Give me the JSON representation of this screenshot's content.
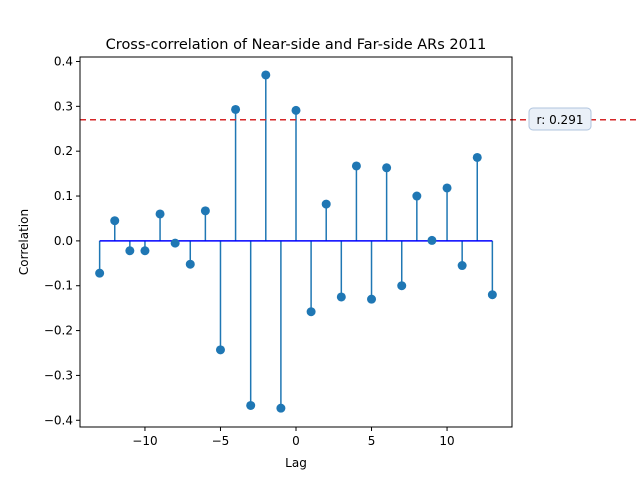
{
  "chart_data": {
    "type": "stem",
    "title": "Cross-correlation of Near-side and Far-side ARs 2011",
    "xlabel": "Lag",
    "ylabel": "Correlation",
    "xlim": [
      -14.3,
      14.3
    ],
    "ylim": [
      -0.415,
      0.41
    ],
    "x_ticks": [
      -10,
      -5,
      0,
      5,
      10
    ],
    "x_tick_labels": [
      "−10",
      "−5",
      "0",
      "5",
      "10"
    ],
    "y_ticks": [
      -0.4,
      -0.3,
      -0.2,
      -0.1,
      0.0,
      0.1,
      0.2,
      0.3,
      0.4
    ],
    "y_tick_labels": [
      "−0.4",
      "−0.3",
      "−0.2",
      "−0.1",
      "0.0",
      "0.1",
      "0.2",
      "0.3",
      "0.4"
    ],
    "grid": false,
    "series": [
      {
        "x": [
          -13,
          -12,
          -11,
          -10,
          -9,
          -8,
          -7,
          -6,
          -5,
          -4,
          -3,
          -2,
          -1,
          0,
          1,
          2,
          3,
          4,
          5,
          6,
          7,
          8,
          9,
          10,
          11,
          12,
          13
        ],
        "values": [
          -0.072,
          0.045,
          -0.022,
          -0.022,
          0.06,
          -0.005,
          -0.052,
          0.067,
          -0.243,
          0.293,
          -0.367,
          0.37,
          -0.373,
          0.291,
          -0.158,
          0.082,
          -0.125,
          0.167,
          -0.13,
          0.163,
          -0.1,
          0.1,
          0.001,
          0.118,
          -0.055,
          0.186,
          -0.12
        ],
        "color": "#1f77b4"
      }
    ],
    "baseline": {
      "y": 0.0,
      "color": "#0000ff"
    },
    "threshold_line": {
      "y": 0.27,
      "color": "#d62728",
      "style": "dashed"
    },
    "annotation": {
      "text": "r: 0.291"
    }
  }
}
